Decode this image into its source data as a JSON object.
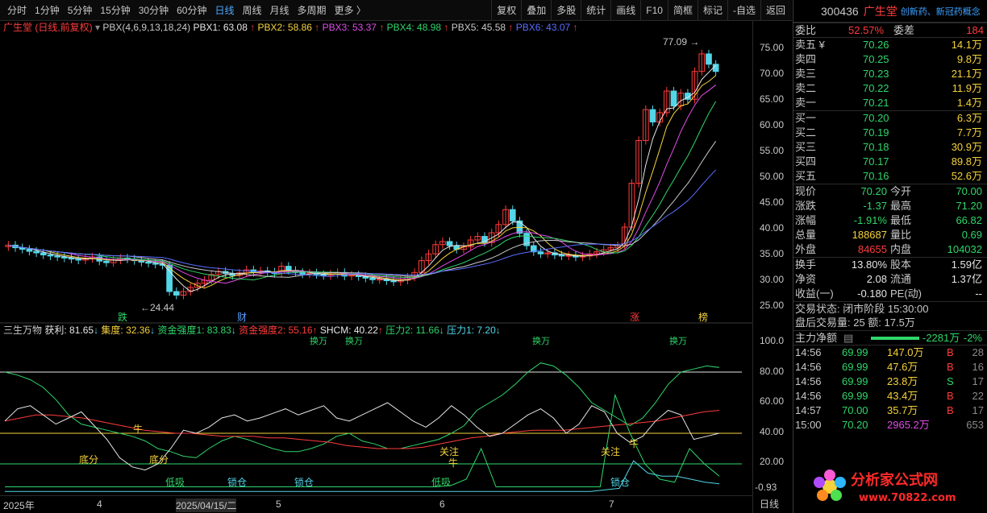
{
  "toolbar": {
    "periods": [
      "分时",
      "1分钟",
      "5分钟",
      "15分钟",
      "30分钟",
      "60分钟",
      "日线",
      "周线",
      "月线",
      "多周期",
      "更多 〉"
    ],
    "active_period": "日线",
    "tools": [
      "复权",
      "叠加",
      "多股",
      "统计",
      "画线",
      "F10",
      "简框",
      "标记",
      "-自选",
      "返回"
    ]
  },
  "main_chart": {
    "title": "广生堂 (日线,前复权)",
    "indicator": "PBX(4,6,9,13,18,24)",
    "pbx": [
      {
        "label": "PBX1: 63.08",
        "arrow": "↑",
        "color": "#e6e6e6"
      },
      {
        "label": "PBX2: 58.86",
        "arrow": "↑",
        "color": "#f5d23a"
      },
      {
        "label": "PBX3: 53.37",
        "arrow": "↑",
        "color": "#e04ce8"
      },
      {
        "label": "PBX4: 48.98",
        "arrow": "↑",
        "color": "#2fd66a"
      },
      {
        "label": "PBX5: 45.58",
        "arrow": "↑",
        "color": "#c8c8c8"
      },
      {
        "label": "PBX6: 43.07",
        "arrow": "↑",
        "color": "#5a6dff"
      }
    ],
    "y_ticks": [
      "75.00",
      "70.00",
      "65.00",
      "60.00",
      "55.00",
      "50.00",
      "45.00",
      "40.00",
      "35.00",
      "30.00",
      "25.00"
    ],
    "high_label": "77.09",
    "low_label": "←24.44",
    "markers": [
      "跌",
      "财",
      "涨",
      "榜"
    ]
  },
  "sub_chart": {
    "title": "三生万物",
    "items": [
      {
        "label": "获利: 81.65",
        "arrow": "↓",
        "color": "#e6e6e6"
      },
      {
        "label": "集度: 32.36",
        "arrow": "↓",
        "color": "#f5d23a"
      },
      {
        "label": "资金强度1: 83.83",
        "arrow": "↓",
        "color": "#2fd66a"
      },
      {
        "label": "资金强度2: 55.16",
        "arrow": "↑",
        "color": "#ff3b3b"
      },
      {
        "label": "SHCM: 40.22",
        "arrow": "↑",
        "color": "#e6e6e6"
      },
      {
        "label": "压力2: 11.66",
        "arrow": "↓",
        "color": "#2fd66a"
      },
      {
        "label": "压力1: 7.20",
        "arrow": "↓",
        "color": "#52d6e8"
      }
    ],
    "y_ticks": [
      "100.0",
      "80.00",
      "60.00",
      "40.00",
      "20.00"
    ],
    "bottom_value": "-0.93",
    "annotations": [
      "底分",
      "底分",
      "低吸",
      "锁仓",
      "锁仓",
      "低吸",
      "关注",
      "牛",
      "关注",
      "牛",
      "锁仓",
      "牛"
    ],
    "top_labels": [
      "换万",
      "换万",
      "换万",
      "换万"
    ]
  },
  "x_axis": {
    "labels": [
      "2025年",
      "4",
      "2025/04/15/二",
      "5",
      "6",
      "7"
    ],
    "right_label": "日线"
  },
  "quote": {
    "code": "300436",
    "name": "广生堂",
    "tag": "创新药、新冠药概念",
    "weibi": {
      "label": "委比",
      "value": "52.57%"
    },
    "weicha": {
      "label": "委差",
      "value": "184"
    },
    "asks": [
      {
        "label": "卖五 ¥",
        "price": "70.26",
        "vol": "14.1万"
      },
      {
        "label": "卖四",
        "price": "70.25",
        "vol": "9.8万"
      },
      {
        "label": "卖三",
        "price": "70.23",
        "vol": "21.1万"
      },
      {
        "label": "卖二",
        "price": "70.22",
        "vol": "11.9万"
      },
      {
        "label": "卖一",
        "price": "70.21",
        "vol": "1.4万"
      }
    ],
    "bids": [
      {
        "label": "买一",
        "price": "70.20",
        "vol": "6.3万"
      },
      {
        "label": "买二",
        "price": "70.19",
        "vol": "7.7万"
      },
      {
        "label": "买三",
        "price": "70.18",
        "vol": "30.9万"
      },
      {
        "label": "买四",
        "price": "70.17",
        "vol": "89.8万"
      },
      {
        "label": "买五",
        "price": "70.16",
        "vol": "52.6万"
      }
    ],
    "stats": [
      {
        "l1": "现价",
        "v1": "70.20",
        "c1": "green",
        "l2": "今开",
        "v2": "70.00",
        "c2": "green"
      },
      {
        "l1": "涨跌",
        "v1": "-1.37",
        "c1": "green",
        "l2": "最高",
        "v2": "71.20",
        "c2": "green"
      },
      {
        "l1": "涨幅",
        "v1": "-1.91%",
        "c1": "green",
        "l2": "最低",
        "v2": "66.82",
        "c2": "green"
      },
      {
        "l1": "总量",
        "v1": "188687",
        "c1": "yellow",
        "l2": "量比",
        "v2": "0.69",
        "c2": "green"
      },
      {
        "l1": "外盘",
        "v1": "84655",
        "c1": "red",
        "l2": "内盘",
        "v2": "104032",
        "c2": "green"
      }
    ],
    "stats2": [
      {
        "l1": "换手",
        "v1": "13.80%",
        "l2": "股本",
        "v2": "1.59亿"
      },
      {
        "l1": "净资",
        "v1": "2.08",
        "l2": "流通",
        "v2": "1.37亿"
      },
      {
        "l1": "收益(一)",
        "v1": "-0.180",
        "l2": "PE(动)",
        "v2": "--"
      }
    ],
    "trade_status": "交易状态: 闭市阶段 15:30:00",
    "after_hours": "盘后交易量: 25  额: 17.5万",
    "main_flow": {
      "label": "主力净额",
      "value": "-2281万",
      "pct": "-2%"
    },
    "ticks": [
      {
        "time": "14:56",
        "price": "69.99",
        "vol": "147.0万",
        "side": "B",
        "n": "28"
      },
      {
        "time": "14:56",
        "price": "69.99",
        "vol": "47.6万",
        "side": "B",
        "n": "16"
      },
      {
        "time": "14:56",
        "price": "69.99",
        "vol": "23.8万",
        "side": "S",
        "n": "17"
      },
      {
        "time": "14:56",
        "price": "69.99",
        "vol": "43.4万",
        "side": "B",
        "n": "22"
      },
      {
        "time": "14:57",
        "price": "70.00",
        "vol": "35.7万",
        "side": "B",
        "n": "17"
      },
      {
        "time": "15:00",
        "price": "70.20",
        "vol": "2965.2万",
        "side": "",
        "n": "653"
      }
    ]
  },
  "watermark": {
    "text": "分析家公式网",
    "url": "www.70822.com"
  }
}
